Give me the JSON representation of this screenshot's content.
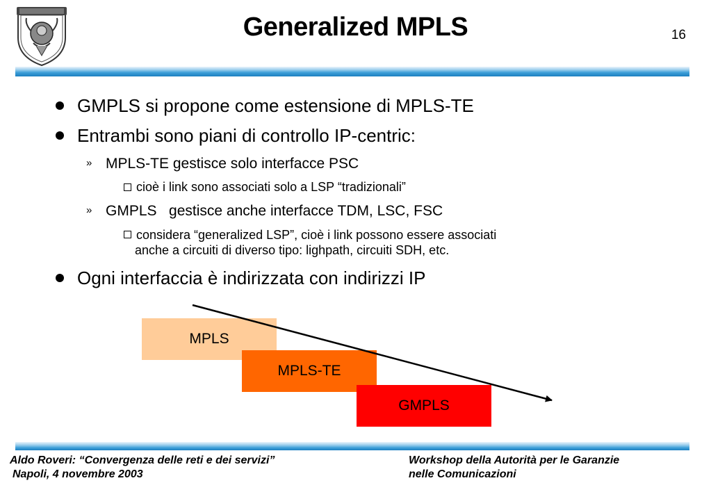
{
  "header": {
    "title": "Generalized MPLS",
    "page_number": "16"
  },
  "bullets": [
    {
      "text": "GMPLS si propone come estensione di MPLS-TE",
      "children": []
    },
    {
      "text": "Entrambi sono piani di controllo IP-centric:",
      "children": [
        {
          "marker": "»",
          "text": "MPLS-TE gestisce solo interfacce PSC",
          "children": [
            {
              "text": "cioè i link sono associati solo a LSP “tradizionali”"
            }
          ]
        },
        {
          "marker": "»",
          "text": "GMPLS   gestisce anche interfacce TDM, LSC, FSC",
          "children": [
            {
              "text_line1": "considera “generalized LSP”, cioè i link possono essere associati",
              "text_line2": "anche a circuiti di diverso tipo: lighpath, circuiti SDH, etc."
            }
          ]
        }
      ]
    },
    {
      "text": "Ogni interfaccia è indirizzata con indirizzi IP",
      "children": []
    }
  ],
  "diagram": {
    "blocks": [
      {
        "label": "MPLS",
        "color": "#ffcc99"
      },
      {
        "label": "MPLS-TE",
        "color": "#ff6600"
      },
      {
        "label": "GMPLS",
        "color": "#ff0000"
      }
    ]
  },
  "footer": {
    "left_line1": "Aldo Roveri: “Convergenza delle reti e dei servizi”",
    "left_line2": "Napoli, 4 novembre 2003",
    "right_line1": "Workshop della Autorità per le Garanzie",
    "right_line2": "nelle Comunicazioni"
  },
  "colors": {
    "accent_rule": "#1c7fc0"
  },
  "icons": {
    "logo": "university-seal-icon",
    "bullet": "bullet-dot-icon",
    "sub_bullet": "checkbox-square-icon"
  }
}
